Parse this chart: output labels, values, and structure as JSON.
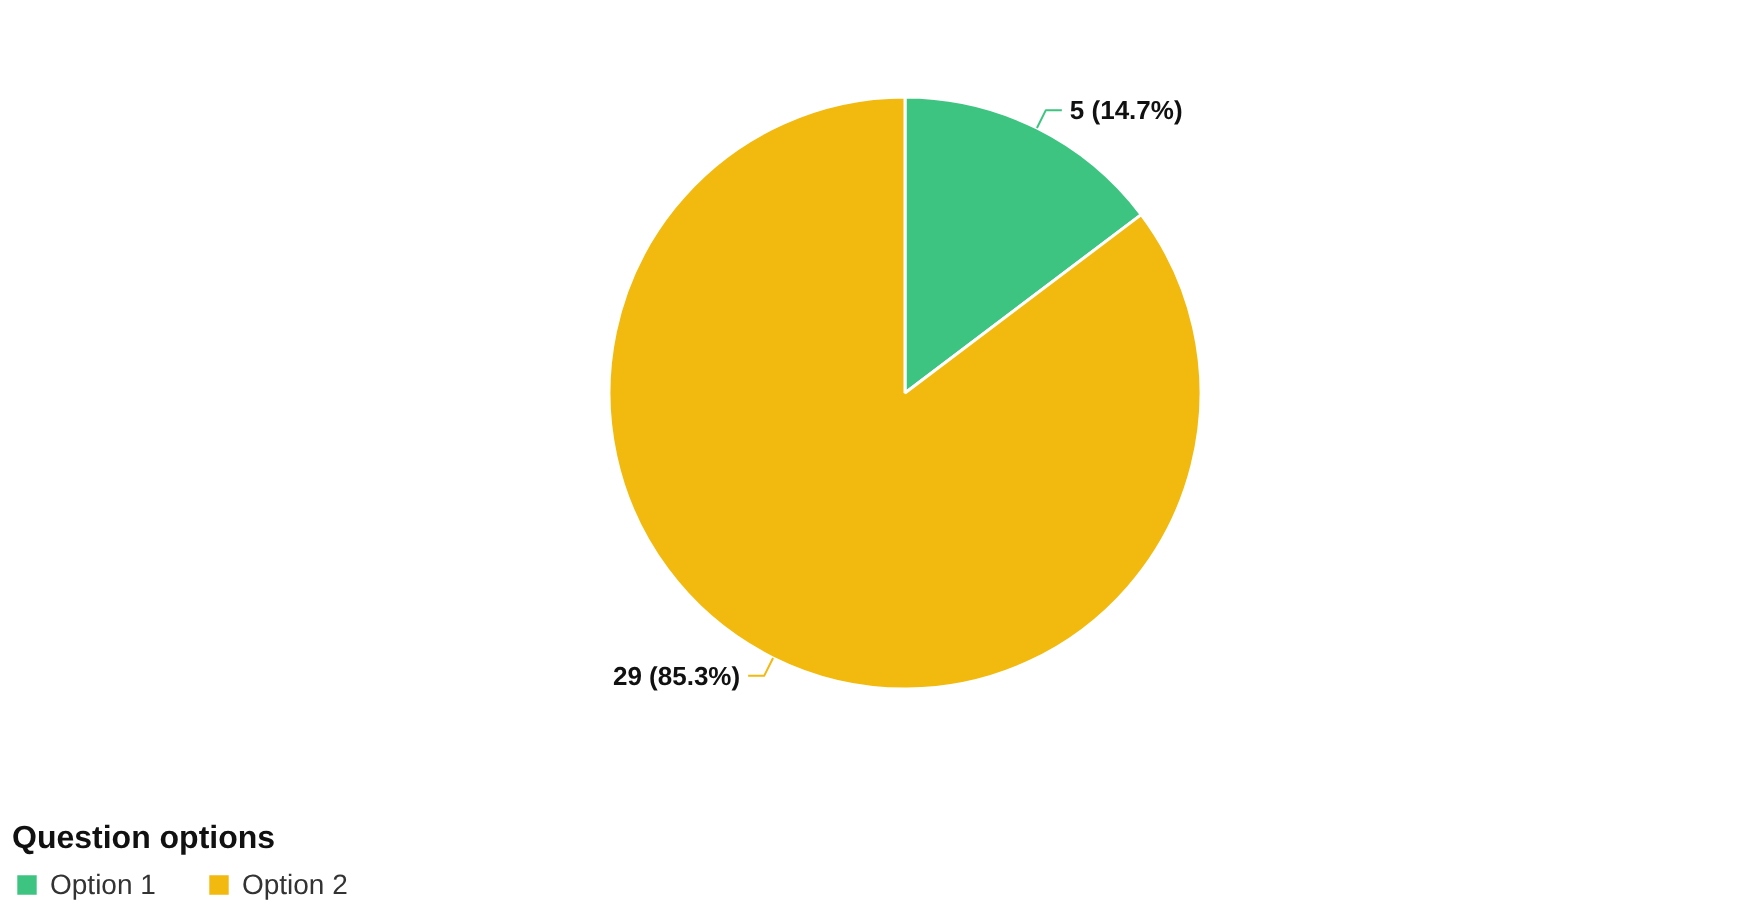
{
  "chart_data": {
    "type": "pie",
    "categories": [
      "Option 1",
      "Option 2"
    ],
    "values": [
      5,
      29
    ],
    "colors": [
      "#3ec481",
      "#f2b90f"
    ],
    "value_labels": [
      "5 (14.7%)",
      "29 (85.3%)"
    ],
    "legend_title": "Question options",
    "legend": "bottom left"
  }
}
